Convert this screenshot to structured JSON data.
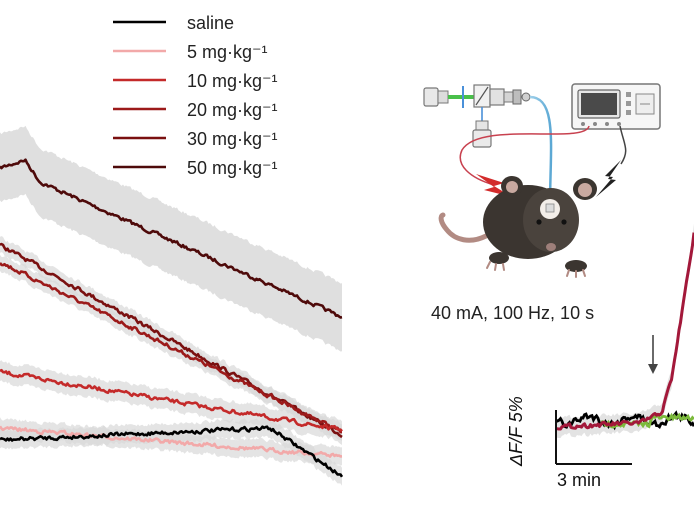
{
  "legend": {
    "items": [
      {
        "label": "saline",
        "color": "#000000"
      },
      {
        "label": "5 mg·kg⁻¹",
        "color": "#f2a9a9"
      },
      {
        "label": "10 mg·kg⁻¹",
        "color": "#c42a2a"
      },
      {
        "label": "20 mg·kg⁻¹",
        "color": "#9c1a1a"
      },
      {
        "label": "30 mg·kg⁻¹",
        "color": "#7a1010"
      },
      {
        "label": "50 mg·kg⁻¹",
        "color": "#4e0a0a"
      }
    ]
  },
  "stimulation": {
    "params": "40 mA,  100 Hz,  10 s"
  },
  "scale_bar": {
    "y_label": "ΔF/F 5%",
    "x_label": "3 min"
  },
  "colors": {
    "shading": "#d9d9d9",
    "stim_trace": "#a3183a",
    "control_trace": "#7cba3c",
    "mouse_body": "#3b3530",
    "mouse_ear_inner": "#c9a9a0",
    "mouse_tail": "#b28b83",
    "bolt": "#d32b2b"
  },
  "icons": {
    "laser": "optical-setup-icon",
    "stimulator": "stimulator-device-icon",
    "mouse": "mouse-icon",
    "arrow": "stimulus-onset-arrow-icon"
  }
}
